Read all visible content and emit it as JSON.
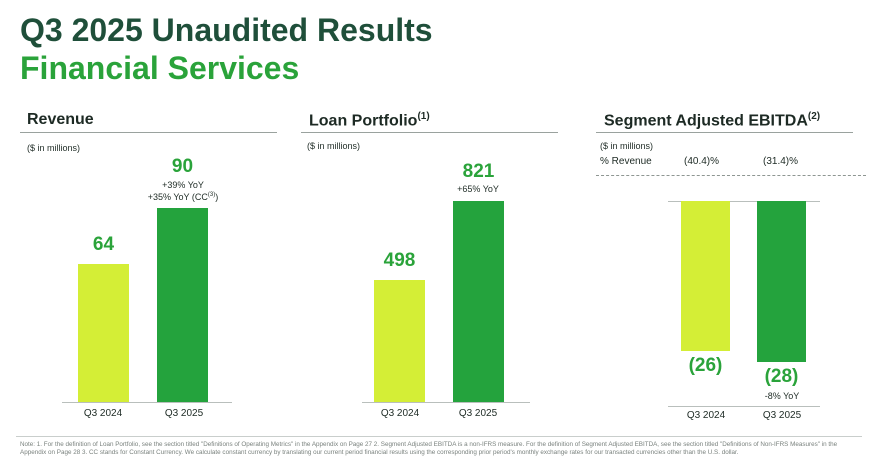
{
  "header": {
    "title_line1": "Q3 2025 Unaudited Results",
    "title_line2": "Financial Services"
  },
  "colors": {
    "q3_2024": "#d4ee36",
    "q3_2025": "#24a33d",
    "title_dark": "#1f4f3a",
    "title_green": "#2aa33a"
  },
  "panels": {
    "revenue": {
      "title": "Revenue",
      "unit": "($ in millions)",
      "growth_yoy": "+39% YoY",
      "growth_cc_prefix": "+35% YoY (CC",
      "growth_cc_sup": "(3)",
      "growth_cc_suffix": ")"
    },
    "loan": {
      "title": "Loan Portfolio",
      "title_sup": "(1)",
      "unit": "($ in millions)",
      "growth_yoy": "+65% YoY"
    },
    "ebitda": {
      "title": "Segment Adjusted EBITDA",
      "title_sup": "(2)",
      "unit": "($ in millions)",
      "pct_label": "% Revenue",
      "pct_2024": "(40.4)%",
      "pct_2025": "(31.4)%",
      "growth_yoy": "-8% YoY"
    }
  },
  "chart_data": [
    {
      "type": "bar",
      "title": "Revenue",
      "ylabel": "$ in millions",
      "categories": [
        "Q3 2024",
        "Q3 2025"
      ],
      "values": [
        64,
        90
      ],
      "value_labels": [
        "64",
        "90"
      ]
    },
    {
      "type": "bar",
      "title": "Loan Portfolio",
      "ylabel": "$ in millions",
      "categories": [
        "Q3 2024",
        "Q3 2025"
      ],
      "values": [
        498,
        821
      ],
      "value_labels": [
        "498",
        "821"
      ]
    },
    {
      "type": "bar",
      "title": "Segment Adjusted EBITDA",
      "ylabel": "$ in millions",
      "categories": [
        "Q3 2024",
        "Q3 2025"
      ],
      "values": [
        -26,
        -28
      ],
      "value_labels": [
        "(26)",
        "(28)"
      ]
    }
  ],
  "footnote": "Note: 1. For the definition of Loan Portfolio, see the section titled \"Definitions of Operating Metrics\" in the Appendix on Page 27 2. Segment Adjusted EBITDA is a non-IFRS measure. For the definition of Segment Adjusted EBITDA, see the section titled \"Definitions of Non-IFRS Measures\" in the Appendix on Page 28 3. CC stands for Constant Currency. We calculate constant currency by translating our current period financial results using the corresponding prior period's monthly exchange rates for our transacted currencies other than the U.S. dollar."
}
